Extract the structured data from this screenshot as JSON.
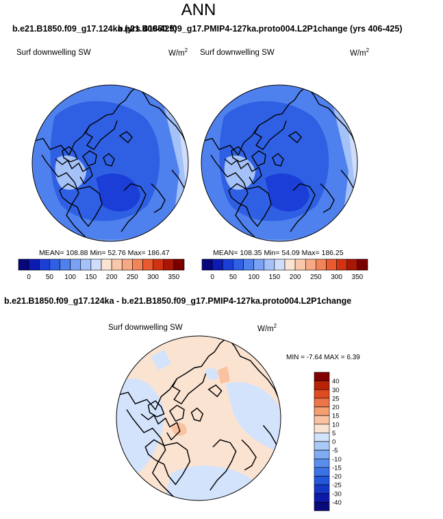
{
  "header": {
    "title": "ANN",
    "subtitle_left": "b.e21.B1850.f09_g17.124ka (yrs 406-425)",
    "subtitle_right": "b.e21.B1850.f09_g17.PMIP4-127ka.proto004.L2P1change (yrs 406-425)"
  },
  "chart_data": [
    {
      "type": "heatmap",
      "projection": "north polar stereographic",
      "variable": "Surf downwelling SW",
      "units": "W/m",
      "units_exponent": "2",
      "stats": {
        "mean_label": "MEAN= 108.88",
        "min_label": "Min=  52.76",
        "max_label": "Max= 186.47"
      },
      "mean": 108.88,
      "min": 52.76,
      "max": 186.47,
      "colorbar_ticks": [
        "0",
        "50",
        "100",
        "150",
        "200",
        "250",
        "300",
        "350"
      ]
    },
    {
      "type": "heatmap",
      "projection": "north polar stereographic",
      "variable": "Surf downwelling SW",
      "units": "W/m",
      "units_exponent": "2",
      "stats": {
        "mean_label": "MEAN= 108.35",
        "min_label": "Min=  54.09",
        "max_label": "Max= 186.25"
      },
      "mean": 108.35,
      "min": 54.09,
      "max": 186.25,
      "colorbar_ticks": [
        "0",
        "50",
        "100",
        "150",
        "200",
        "250",
        "300",
        "350"
      ]
    },
    {
      "type": "heatmap",
      "projection": "north polar stereographic",
      "title": "b.e21.B1850.f09_g17.124ka - b.e21.B1850.f09_g17.PMIP4-127ka.proto004.L2P1change",
      "variable": "Surf downwelling SW",
      "units": "W/m",
      "units_exponent": "2",
      "stats_label": "MIN =  -7.64 MAX =   6.39",
      "min": -7.64,
      "max": 6.39,
      "colorbar_ticks": [
        "40",
        "30",
        "25",
        "20",
        "15",
        "10",
        "5",
        "0",
        "-5",
        "-10",
        "-15",
        "-20",
        "-25",
        "-30",
        "-40"
      ]
    }
  ],
  "colors": {
    "abs_scale": [
      "#05077a",
      "#0c1bb4",
      "#1a3ed6",
      "#2f60e3",
      "#4f81ee",
      "#7aa2f4",
      "#a4c1f8",
      "#cfddfb",
      "#fbe3d2",
      "#f9c8ab",
      "#f6a984",
      "#f28459",
      "#ea5a2e",
      "#d33212",
      "#a81605",
      "#7a0000"
    ],
    "diff_scale": [
      "#0a0a7a",
      "#0d1aa8",
      "#1437c8",
      "#2456dc",
      "#3b73e6",
      "#5a8eed",
      "#80acf3",
      "#aac8f8",
      "#d3e3fb",
      "#fbe3d2",
      "#f9c3a2",
      "#f49e72",
      "#ed7548",
      "#de4b22",
      "#b82308",
      "#820000"
    ]
  }
}
